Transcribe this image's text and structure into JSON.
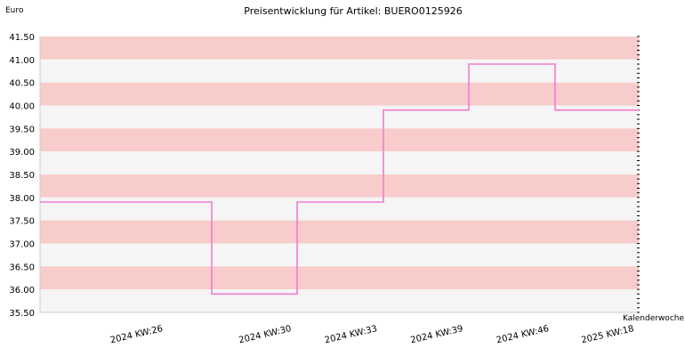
{
  "chart_data": {
    "type": "line",
    "title": "Preisentwicklung für Artikel: BUERO0125926",
    "ylabel": "Euro",
    "xlabel": "Kalenderwoche",
    "ylim": [
      35.5,
      41.5
    ],
    "ytick_labels": [
      "41.50",
      "41.00",
      "40.50",
      "40.00",
      "39.50",
      "39.00",
      "38.50",
      "38.00",
      "37.50",
      "37.00",
      "36.50",
      "36.00",
      "35.50"
    ],
    "xtick_labels": [
      "2024 KW:26",
      "2024 KW:30",
      "2024 KW:33",
      "2024 KW:39",
      "2024 KW:46",
      "2025 KW:18"
    ],
    "grid": true,
    "band_colors": [
      "#f9cccc",
      "#f5f5f5"
    ],
    "axis_color": "#cccccc",
    "series": [
      {
        "color": "#f07cd0",
        "step": true,
        "x": [
          "2024 KW:26",
          "2024 KW:30",
          "2024 KW:33",
          "2024 KW:39",
          "2024 KW:46",
          "2025 KW:18"
        ],
        "values": [
          37.9,
          35.9,
          37.9,
          39.9,
          40.9,
          39.9
        ]
      }
    ]
  }
}
